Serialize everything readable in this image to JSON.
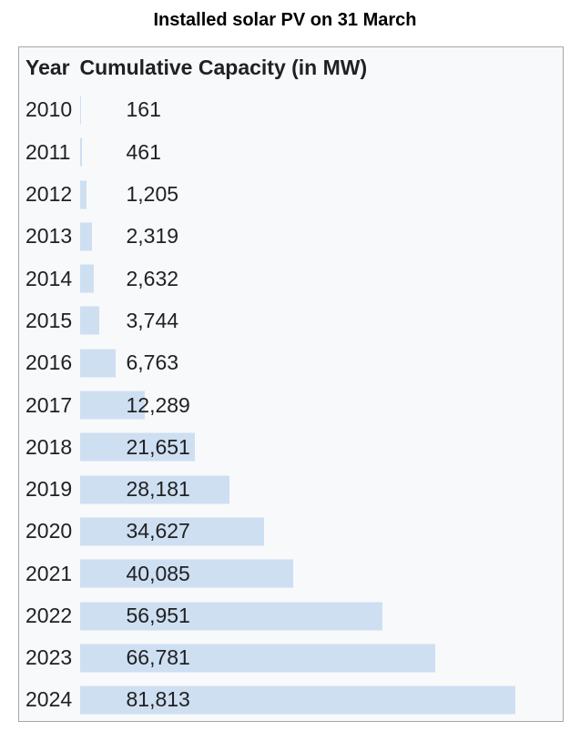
{
  "title": "Installed solar PV on 31 March",
  "table": {
    "headers": [
      "Year",
      "Cumulative Capacity (in MW)"
    ]
  },
  "colors": {
    "bar": "#cedff2",
    "table_background": "#f8f9fa",
    "table_border": "#a2a9b1",
    "text": "#202122"
  },
  "chart_data": {
    "type": "bar",
    "orientation": "horizontal",
    "title": "Installed solar PV on 31 March",
    "ylabel": "Year",
    "xlabel": "Cumulative Capacity (in MW)",
    "categories": [
      "2010",
      "2011",
      "2012",
      "2013",
      "2014",
      "2015",
      "2016",
      "2017",
      "2018",
      "2019",
      "2020",
      "2021",
      "2022",
      "2023",
      "2024"
    ],
    "values": [
      161,
      461,
      1205,
      2319,
      2632,
      3744,
      6763,
      12289,
      21651,
      28181,
      34627,
      40085,
      56951,
      66781,
      81813
    ],
    "value_labels": [
      "161",
      "461",
      "1,205",
      "2,319",
      "2,632",
      "3,744",
      "6,763",
      "12,289",
      "21,651",
      "28,181",
      "34,627",
      "40,085",
      "56,951",
      "66,781",
      "81,813"
    ],
    "xlim": [
      0,
      81813
    ],
    "grid": false,
    "legend": "none",
    "bar_color": "#cedff2"
  }
}
